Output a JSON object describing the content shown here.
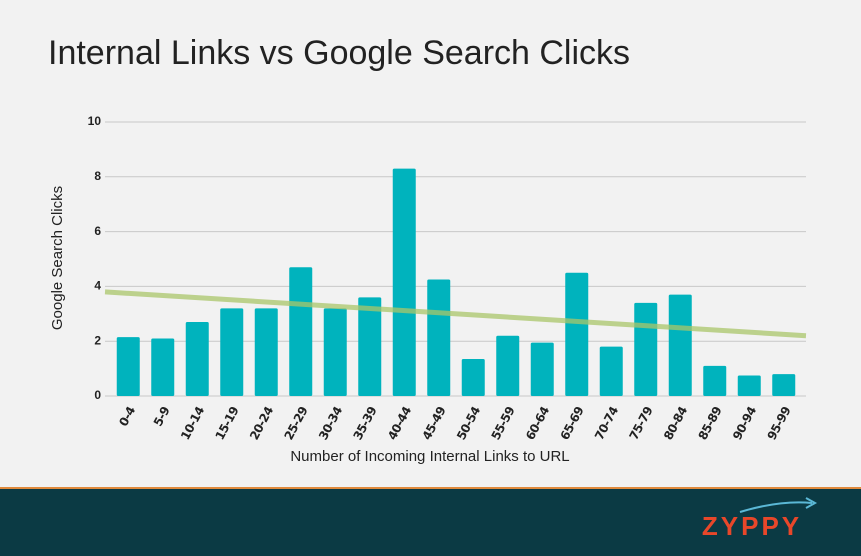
{
  "chart_data": {
    "type": "bar",
    "title": "Internal Links vs Google Search Clicks",
    "x_label": "Number of Incoming Internal Links to URL",
    "y_label": "Google Search Clicks",
    "categories": [
      "0-4",
      "5-9",
      "10-14",
      "15-19",
      "20-24",
      "25-29",
      "30-34",
      "35-39",
      "40-44",
      "45-49",
      "50-54",
      "55-59",
      "60-64",
      "65-69",
      "70-74",
      "75-79",
      "80-84",
      "85-89",
      "90-94",
      "95-99"
    ],
    "values": [
      2.15,
      2.1,
      2.7,
      3.2,
      3.2,
      4.7,
      3.2,
      3.6,
      8.3,
      4.25,
      1.35,
      2.2,
      1.95,
      4.5,
      1.8,
      3.4,
      3.7,
      1.1,
      0.75,
      0.8
    ],
    "color": "#00b3bd",
    "trend_line": {
      "values": [
        3.8,
        2.2
      ],
      "color": "#a9c66a"
    },
    "ylim": [
      0,
      10
    ],
    "yticks": [
      0,
      2,
      4,
      6,
      8,
      10
    ],
    "grid": true
  },
  "footer": {
    "logo": "ZYPPY"
  }
}
